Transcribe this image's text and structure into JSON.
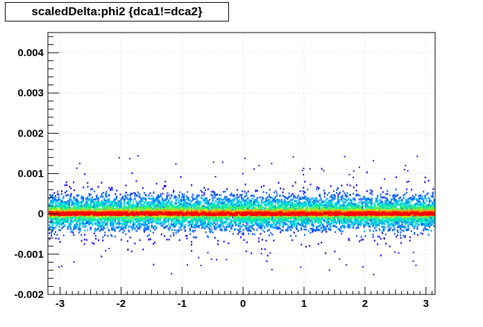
{
  "chart_data": {
    "type": "heatmap",
    "title": "scaledDelta:phi2 {dca1!=dca2}",
    "xlabel": "",
    "ylabel": "",
    "xlim": [
      -3.2,
      3.15
    ],
    "ylim": [
      -0.002,
      0.0045
    ],
    "x_ticks": [
      -3,
      -2,
      -1,
      0,
      1,
      2,
      3
    ],
    "x_tick_labels": [
      "-3",
      "-2",
      "-1",
      "0",
      "1",
      "2",
      "3"
    ],
    "y_ticks": [
      -0.002,
      -0.001,
      0,
      0.001,
      0.002,
      0.003,
      0.004
    ],
    "y_tick_labels": [
      "-0.002",
      "-0.001",
      "0",
      "0.001",
      "0.002",
      "0.003",
      "0.004"
    ],
    "grid": true,
    "legend": "none",
    "palette": [
      "#1a00ff",
      "#0055ff",
      "#00a8ff",
      "#00ddd6",
      "#00f0a0",
      "#5cf050",
      "#d6f000",
      "#ff8c00",
      "#ff0000"
    ],
    "distribution": {
      "description_values": {
        "core_band_y": [
          -3e-05,
          9e-05
        ],
        "dense_band_y": [
          -0.0004,
          0.0005
        ],
        "scatter_band_y": [
          -0.0009,
          0.001
        ],
        "outlier_max_y": 0.0016,
        "outlier_min_y": -0.0015
      }
    }
  }
}
